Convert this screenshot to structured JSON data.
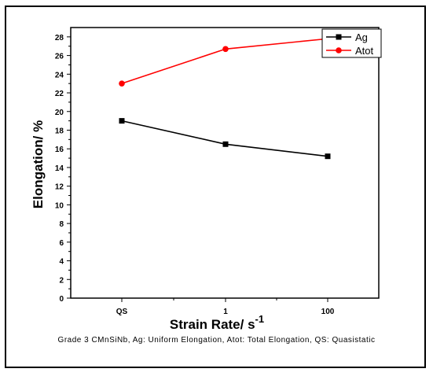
{
  "chart_data": {
    "type": "line",
    "categories": [
      "QS",
      "1",
      "100"
    ],
    "series": [
      {
        "name": "Ag",
        "values": [
          19.0,
          16.5,
          15.2
        ],
        "color": "#000000",
        "marker": "square"
      },
      {
        "name": "Atot",
        "values": [
          23.0,
          26.7,
          27.8
        ],
        "color": "#ff0000",
        "marker": "circle"
      }
    ],
    "xlabel": "Strain Rate/ s",
    "xlabel_superscript": "-1",
    "ylabel": "Elongation/ %",
    "ylim": [
      0,
      29
    ],
    "yticks": [
      "0",
      "2",
      "4",
      "6",
      "8",
      "10",
      "12",
      "14",
      "16",
      "18",
      "20",
      "22",
      "24",
      "26",
      "28"
    ],
    "legend_position": "top-right",
    "grid": false
  },
  "caption": "Grade 3 CMnSiNb, Ag: Uniform Elongation, Atot: Total Elongation, QS: Quasistatic"
}
